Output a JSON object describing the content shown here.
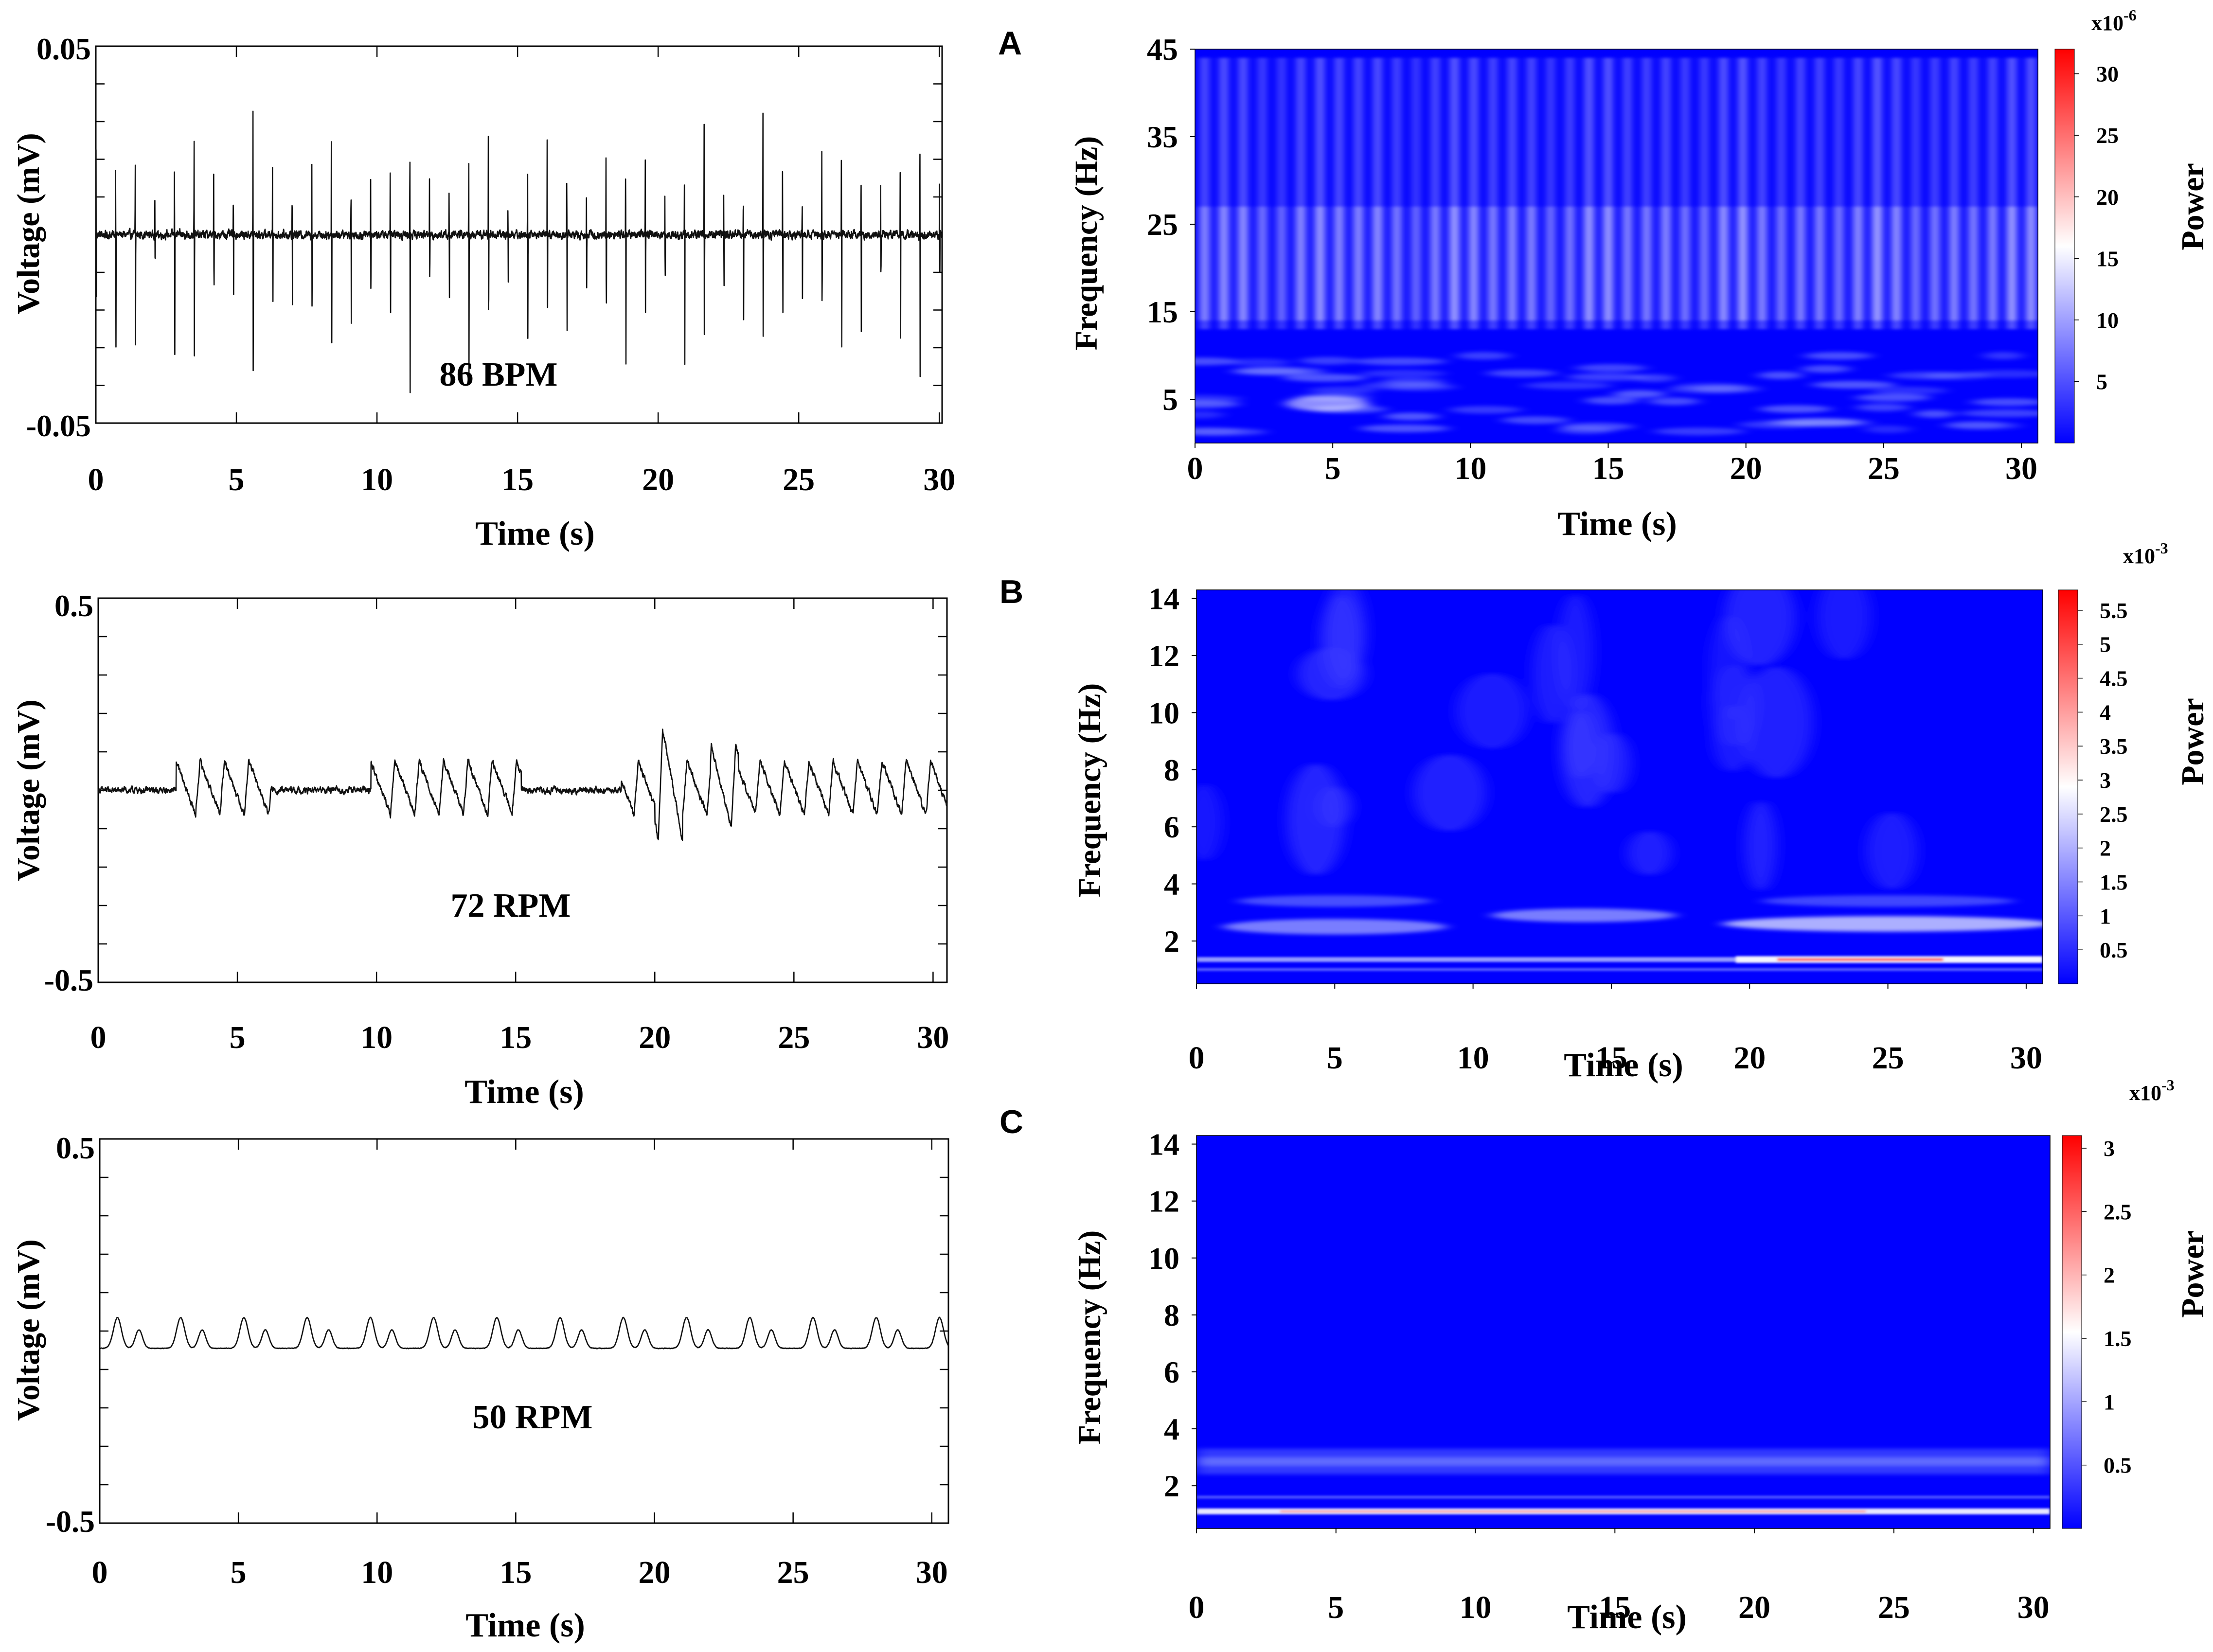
{
  "panels": [
    {
      "letter": "A",
      "ecg": {
        "chart_data": {
          "type": "line",
          "signal": "ecg",
          "rate": 86,
          "annotation": "86 BPM",
          "xlabel": "Time (s)",
          "ylabel": "Voltage (mV)",
          "xlim": [
            0,
            30
          ],
          "ylim": [
            -0.05,
            0.05
          ],
          "xticks": [
            0,
            5,
            10,
            15,
            20,
            25,
            30
          ],
          "yticks": [
            -0.05,
            0.05
          ],
          "ytick_labels": [
            "-0.05",
            "0.05"
          ],
          "baseline": 0
        }
      },
      "spectrogram": {
        "chart_data": {
          "type": "heatmap",
          "pattern": "ecg",
          "rate": 86,
          "xlabel": "Time (s)",
          "ylabel": "Frequency (Hz)",
          "xlim": [
            0,
            30
          ],
          "ylim": [
            0,
            45
          ],
          "xticks": [
            0,
            5,
            10,
            15,
            20,
            25,
            30
          ],
          "yticks": [
            5,
            15,
            25,
            35,
            45
          ],
          "colorbar": {
            "label": "Power",
            "exponent_base": "x10",
            "exponent": "-6",
            "ticks": [
              5,
              10,
              15,
              20,
              25,
              30
            ],
            "max": 32,
            "colors": [
              "#0000ff",
              "#ffffff",
              "#ff0000"
            ]
          }
        }
      }
    },
    {
      "letter": "B",
      "ecg": {
        "chart_data": {
          "type": "line",
          "signal": "resp",
          "rate": 72,
          "annotation": "72 RPM",
          "xlabel": "Time (s)",
          "ylabel": "Voltage (mV)",
          "xlim": [
            0,
            30
          ],
          "ylim": [
            -0.5,
            0.5
          ],
          "xticks": [
            0,
            5,
            10,
            15,
            20,
            25,
            30
          ],
          "yticks": [
            -0.5,
            0.5
          ],
          "ytick_labels": [
            "-0.5",
            "0.5"
          ],
          "baseline": 0
        }
      },
      "spectrogram": {
        "chart_data": {
          "type": "heatmap",
          "pattern": "resp",
          "xlabel": "Time (s)",
          "ylabel": "Frequency (Hz)",
          "xlim": [
            0,
            30
          ],
          "ylim": [
            0.5,
            14.3
          ],
          "xticks": [
            0,
            5,
            10,
            15,
            20,
            25,
            30
          ],
          "yticks": [
            2,
            4,
            6,
            8,
            10,
            12,
            14
          ],
          "colorbar": {
            "label": "Power",
            "exponent_base": "x10",
            "exponent": "-3",
            "ticks": [
              0.5,
              1,
              1.5,
              2,
              2.5,
              3,
              3.5,
              4,
              4.5,
              5,
              5.5
            ],
            "max": 5.8,
            "colors": [
              "#0000ff",
              "#ffffff",
              "#ff0000"
            ]
          }
        }
      }
    },
    {
      "letter": "C",
      "ecg": {
        "chart_data": {
          "type": "line",
          "signal": "regular",
          "rate": 50,
          "annotation": "50 RPM",
          "xlabel": "Time (s)",
          "ylabel": "Voltage (mV)",
          "xlim": [
            0,
            30
          ],
          "ylim": [
            -0.5,
            0.5
          ],
          "xticks": [
            0,
            5,
            10,
            15,
            20,
            25,
            30
          ],
          "yticks": [
            -0.5,
            0.5
          ],
          "ytick_labels": [
            "-0.5",
            "0.5"
          ],
          "baseline": 0
        }
      },
      "spectrogram": {
        "chart_data": {
          "type": "heatmap",
          "pattern": "regular",
          "xlabel": "Time (s)",
          "ylabel": "Frequency (Hz)",
          "xlim": [
            0,
            30
          ],
          "ylim": [
            0.5,
            14.3
          ],
          "xticks": [
            0,
            5,
            10,
            15,
            20,
            25,
            30
          ],
          "yticks": [
            2,
            4,
            6,
            8,
            10,
            12,
            14
          ],
          "colorbar": {
            "label": "Power",
            "exponent_base": "x10",
            "exponent": "-3",
            "ticks": [
              0.5,
              1,
              1.5,
              2,
              2.5,
              3
            ],
            "max": 3.1,
            "colors": [
              "#0000ff",
              "#ffffff",
              "#ff0000"
            ]
          }
        }
      }
    }
  ]
}
